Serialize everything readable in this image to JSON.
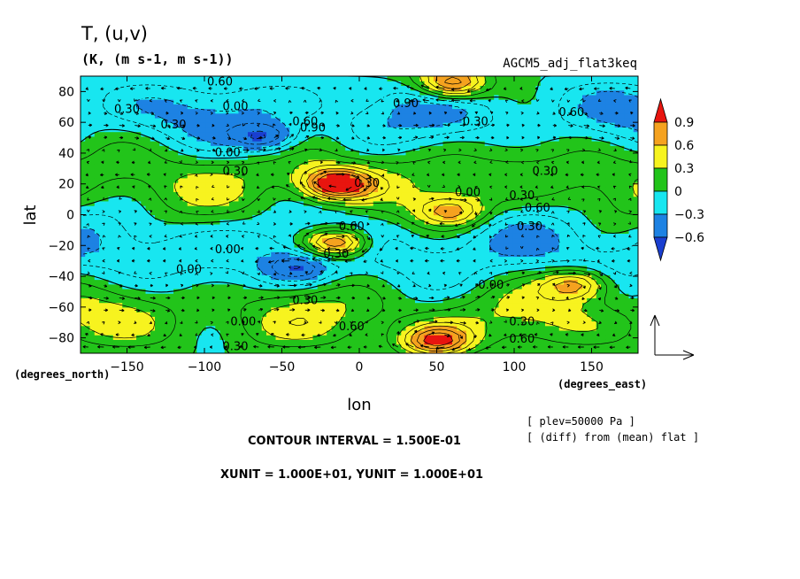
{
  "chart_data": {
    "type": "heatmap",
    "title": "T, (u,v)",
    "units": "(K, (m s-1, m s-1))",
    "experiment": "AGCM5_adj_flat3keq",
    "xlabel": "lon",
    "ylabel": "lat",
    "x_unit": "(degrees_east)",
    "y_unit": "(degrees_north)",
    "xlim": [
      -180,
      180
    ],
    "ylim": [
      -90,
      90
    ],
    "x_ticks": [
      -150,
      -100,
      -50,
      0,
      50,
      100,
      150
    ],
    "y_ticks": [
      80,
      60,
      40,
      20,
      0,
      -20,
      -40,
      -60,
      -80
    ],
    "x_tick_labels": [
      "−150",
      "−100",
      "−50",
      "0",
      "50",
      "100",
      "150"
    ],
    "y_tick_labels": [
      "80",
      "60",
      "40",
      "20",
      "0",
      "−20",
      "−40",
      "−60",
      "−80"
    ],
    "colorbar": {
      "levels": [
        0.9,
        0.6,
        0.3,
        0,
        -0.3,
        -0.6
      ],
      "labels": [
        "0.9",
        "0.6",
        "0.3",
        "0",
        "−0.3",
        "−0.6"
      ],
      "colors": [
        "#e8150f",
        "#f5a21f",
        "#f7f31f",
        "#22c41a",
        "#18e6f0",
        "#1d82e3",
        "#1a3fd0"
      ]
    },
    "features": [
      {
        "lon": -15,
        "lat": 20,
        "value": 1.05
      },
      {
        "lon": -15,
        "lat": -18,
        "value": 1.05
      },
      {
        "lon": 60,
        "lat": 85,
        "value": 0.95
      },
      {
        "lon": 50,
        "lat": -82,
        "value": 0.9
      },
      {
        "lon": -60,
        "lat": 50,
        "value": -0.6
      },
      {
        "lon": -40,
        "lat": -35,
        "value": -0.45
      },
      {
        "lon": 140,
        "lat": -45,
        "value": 0.7
      },
      {
        "lon": 60,
        "lat": 2,
        "value": 0.6
      }
    ],
    "contour_labels": [
      {
        "text": "0.60",
        "lon": -90,
        "lat": 84
      },
      {
        "text": "0.30",
        "lon": -150,
        "lat": 66
      },
      {
        "text": "0.00",
        "lon": -80,
        "lat": 68
      },
      {
        "text": "0.30",
        "lon": -120,
        "lat": 56
      },
      {
        "text": "0.60",
        "lon": -35,
        "lat": 58
      },
      {
        "text": "0.90",
        "lon": -30,
        "lat": 54
      },
      {
        "text": "0.90",
        "lon": 30,
        "lat": 70
      },
      {
        "text": "0.30",
        "lon": 75,
        "lat": 58
      },
      {
        "text": "0.60",
        "lon": 137,
        "lat": 64
      },
      {
        "text": "0.00",
        "lon": -85,
        "lat": 38
      },
      {
        "text": "0.30",
        "lon": -80,
        "lat": 26
      },
      {
        "text": "0.30",
        "lon": 120,
        "lat": 26
      },
      {
        "text": "0.30",
        "lon": 5,
        "lat": 18
      },
      {
        "text": "0.00",
        "lon": 70,
        "lat": 12
      },
      {
        "text": "0.30",
        "lon": 105,
        "lat": 10
      },
      {
        "text": "0.60",
        "lon": 115,
        "lat": 2
      },
      {
        "text": "0.60",
        "lon": -5,
        "lat": -10
      },
      {
        "text": "0.30",
        "lon": 110,
        "lat": -10
      },
      {
        "text": "0.00",
        "lon": -85,
        "lat": -25
      },
      {
        "text": "0.00",
        "lon": -110,
        "lat": -38
      },
      {
        "text": "0.30",
        "lon": -15,
        "lat": -28
      },
      {
        "text": "0.30",
        "lon": -35,
        "lat": -58
      },
      {
        "text": "0.00",
        "lon": 85,
        "lat": -48
      },
      {
        "text": "0.00",
        "lon": -75,
        "lat": -72
      },
      {
        "text": "0.60",
        "lon": -5,
        "lat": -75
      },
      {
        "text": "0.30",
        "lon": 105,
        "lat": -72
      },
      {
        "text": "0.60",
        "lon": 105,
        "lat": -83
      },
      {
        "text": "0.30",
        "lon": -80,
        "lat": -88
      }
    ]
  },
  "footer": {
    "contour_interval": "CONTOUR INTERVAL = 1.500E-01",
    "vector_units": "XUNIT = 1.000E+01, YUNIT = 1.000E+01",
    "plev": "[ plev=50000 Pa ]",
    "diff": "[ (diff) from (mean) flat ]"
  }
}
